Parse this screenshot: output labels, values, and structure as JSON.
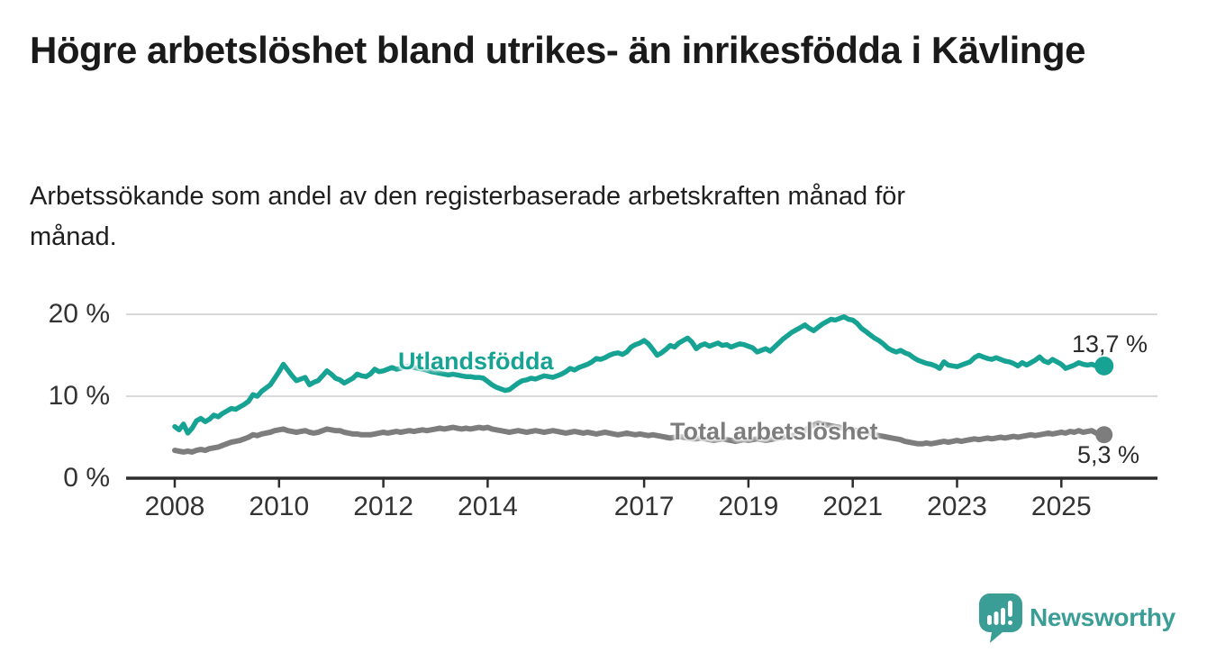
{
  "header": {
    "title": "Högre arbetslöshet bland utrikes- än inrikesfödda i Kävlinge",
    "subtitle": "Arbetssökande som andel av den registerbaserade arbetskraften månad för månad."
  },
  "colors": {
    "foreign_born_line": "#16a394",
    "total_line": "#7d7d7d",
    "axis": "#2d2d2d",
    "gridline": "#d9d9d9",
    "tick_text": "#333333",
    "value_label_text": "#2b2b2b",
    "brand_teal": "#3a9e96"
  },
  "chart_data": {
    "type": "line",
    "x_start": "2008-01",
    "x_end": "2025-10",
    "frequency": "monthly",
    "ylim": [
      0,
      20
    ],
    "grid": "horizontal-only",
    "yticks": [
      {
        "value": 0,
        "label": "0 %"
      },
      {
        "value": 10,
        "label": "10 %"
      },
      {
        "value": 20,
        "label": "20 %"
      }
    ],
    "xticks": [
      {
        "year": 2008,
        "label": "2008"
      },
      {
        "year": 2010,
        "label": "2010"
      },
      {
        "year": 2012,
        "label": "2012"
      },
      {
        "year": 2014,
        "label": "2014"
      },
      {
        "year": 2017,
        "label": "2017"
      },
      {
        "year": 2019,
        "label": "2019"
      },
      {
        "year": 2021,
        "label": "2021"
      },
      {
        "year": 2023,
        "label": "2023"
      },
      {
        "year": 2025,
        "label": "2025"
      }
    ],
    "series": [
      {
        "name": "Utlandsfödda",
        "color": "#16a394",
        "end_value": 13.7,
        "end_label": "13,7 %",
        "values": [
          6.3,
          5.9,
          6.6,
          5.5,
          6.1,
          7.0,
          7.3,
          6.9,
          7.2,
          7.7,
          7.5,
          7.9,
          8.2,
          8.5,
          8.4,
          8.7,
          9.0,
          9.4,
          10.2,
          10.0,
          10.6,
          11.0,
          11.4,
          12.2,
          13.0,
          13.9,
          13.2,
          12.5,
          11.9,
          12.1,
          12.3,
          11.4,
          11.7,
          11.9,
          12.5,
          13.1,
          12.7,
          12.2,
          12.0,
          11.6,
          11.9,
          12.2,
          12.7,
          12.5,
          12.4,
          12.7,
          13.3,
          13.0,
          13.1,
          13.3,
          13.5,
          13.3,
          13.4,
          13.6,
          13.7,
          13.5,
          13.4,
          13.3,
          13.2,
          13.0,
          12.9,
          12.8,
          12.7,
          12.6,
          12.7,
          12.6,
          12.5,
          12.4,
          12.4,
          12.3,
          12.3,
          12.2,
          11.8,
          11.4,
          11.1,
          10.9,
          10.7,
          10.8,
          11.2,
          11.6,
          11.9,
          12.0,
          12.2,
          12.1,
          12.3,
          12.5,
          12.4,
          12.3,
          12.5,
          12.7,
          13.0,
          13.4,
          13.2,
          13.5,
          13.7,
          13.9,
          14.2,
          14.6,
          14.5,
          14.7,
          15.0,
          15.2,
          15.3,
          15.1,
          15.4,
          16.0,
          16.3,
          16.5,
          16.8,
          16.4,
          15.7,
          15.0,
          15.3,
          15.7,
          16.2,
          16.0,
          16.5,
          16.8,
          17.1,
          16.6,
          15.8,
          16.2,
          16.4,
          16.1,
          16.3,
          16.5,
          16.2,
          16.3,
          16.0,
          16.2,
          16.4,
          16.3,
          16.1,
          15.9,
          15.4,
          15.6,
          15.8,
          15.5,
          16.0,
          16.5,
          17.0,
          17.4,
          17.8,
          18.1,
          18.4,
          18.7,
          18.3,
          18.0,
          18.4,
          18.8,
          19.1,
          19.4,
          19.3,
          19.5,
          19.7,
          19.4,
          19.3,
          18.9,
          18.3,
          17.9,
          17.5,
          17.1,
          16.8,
          16.4,
          15.9,
          15.6,
          15.4,
          15.6,
          15.3,
          15.1,
          14.7,
          14.4,
          14.2,
          14.0,
          13.9,
          13.7,
          13.4,
          14.2,
          13.8,
          13.7,
          13.6,
          13.8,
          14.0,
          14.2,
          14.7,
          15.0,
          14.8,
          14.6,
          14.5,
          14.7,
          14.5,
          14.3,
          14.2,
          14.0,
          13.7,
          14.1,
          13.8,
          14.1,
          14.4,
          14.8,
          14.3,
          14.1,
          14.5,
          14.2,
          13.9,
          13.4,
          13.6,
          13.8,
          14.1,
          13.9,
          13.8,
          13.9,
          13.7,
          13.7
        ]
      },
      {
        "name": "Total arbetslöshet",
        "color": "#7d7d7d",
        "end_value": 5.3,
        "end_label": "5,3 %",
        "values": [
          3.4,
          3.3,
          3.2,
          3.3,
          3.2,
          3.4,
          3.5,
          3.4,
          3.6,
          3.7,
          3.8,
          4.0,
          4.2,
          4.4,
          4.5,
          4.6,
          4.8,
          5.0,
          5.3,
          5.2,
          5.4,
          5.5,
          5.6,
          5.8,
          5.9,
          6.0,
          5.8,
          5.7,
          5.6,
          5.7,
          5.8,
          5.6,
          5.5,
          5.6,
          5.8,
          6.0,
          5.9,
          5.8,
          5.8,
          5.6,
          5.5,
          5.4,
          5.4,
          5.3,
          5.3,
          5.3,
          5.4,
          5.5,
          5.6,
          5.5,
          5.6,
          5.7,
          5.6,
          5.7,
          5.8,
          5.7,
          5.8,
          5.9,
          5.8,
          5.9,
          6.0,
          6.1,
          6.0,
          6.1,
          6.2,
          6.1,
          6.0,
          6.1,
          6.0,
          6.1,
          6.2,
          6.1,
          6.2,
          6.0,
          5.9,
          5.8,
          5.7,
          5.6,
          5.7,
          5.8,
          5.7,
          5.6,
          5.7,
          5.8,
          5.7,
          5.6,
          5.7,
          5.8,
          5.7,
          5.6,
          5.5,
          5.6,
          5.7,
          5.6,
          5.5,
          5.6,
          5.5,
          5.4,
          5.5,
          5.6,
          5.5,
          5.4,
          5.3,
          5.4,
          5.5,
          5.4,
          5.3,
          5.4,
          5.3,
          5.2,
          5.3,
          5.2,
          5.1,
          5.0,
          4.9,
          5.0,
          5.1,
          5.0,
          4.9,
          4.8,
          4.8,
          4.9,
          4.8,
          4.7,
          4.6,
          4.7,
          4.8,
          4.7,
          4.6,
          4.5,
          4.6,
          4.7,
          4.6,
          4.7,
          4.8,
          4.7,
          4.6,
          4.7,
          4.8,
          4.9,
          5.0,
          5.1,
          5.2,
          5.3,
          5.6,
          5.8,
          6.2,
          6.5,
          6.7,
          6.6,
          6.5,
          6.4,
          6.3,
          6.2,
          6.1,
          6.0,
          5.9,
          5.8,
          5.7,
          5.6,
          5.5,
          5.3,
          5.2,
          5.1,
          5.0,
          4.9,
          4.8,
          4.7,
          4.5,
          4.4,
          4.3,
          4.2,
          4.2,
          4.3,
          4.2,
          4.3,
          4.4,
          4.5,
          4.4,
          4.5,
          4.6,
          4.5,
          4.6,
          4.7,
          4.8,
          4.7,
          4.8,
          4.9,
          4.8,
          4.9,
          5.0,
          4.9,
          5.0,
          5.1,
          5.0,
          5.1,
          5.2,
          5.3,
          5.2,
          5.3,
          5.4,
          5.5,
          5.4,
          5.5,
          5.6,
          5.5,
          5.7,
          5.6,
          5.8,
          5.6,
          5.7,
          5.8,
          5.5,
          5.3
        ]
      }
    ]
  },
  "branding": {
    "logo_text": "Newsworthy",
    "logo_icon": "bar-chart-speech-bubble-icon"
  }
}
